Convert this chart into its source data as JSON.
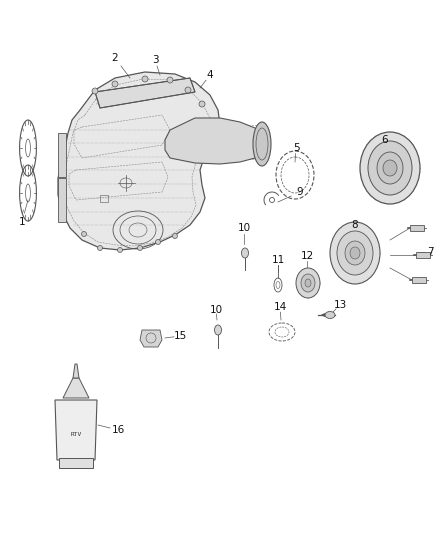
{
  "bg_color": "#ffffff",
  "fig_width": 4.38,
  "fig_height": 5.33,
  "dpi": 100,
  "line_color": "#444444",
  "label_fontsize": 7.5,
  "label_color": "#111111"
}
